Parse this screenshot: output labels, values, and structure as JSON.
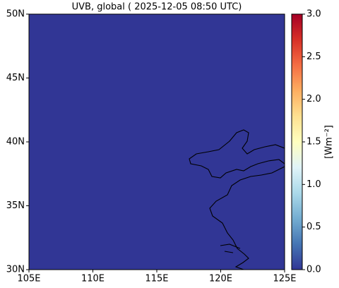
{
  "chart_data": {
    "type": "map",
    "title": "UVB, global ( 2025-12-05 08:50 UTC)",
    "xlim": [
      105,
      125
    ],
    "xticks": [
      {
        "value": 105,
        "label": "105E"
      },
      {
        "value": 110,
        "label": "110E"
      },
      {
        "value": 115,
        "label": "115E"
      },
      {
        "value": 120,
        "label": "120E"
      },
      {
        "value": 125,
        "label": "125E"
      }
    ],
    "ylim": [
      30,
      50
    ],
    "yticks": [
      {
        "value": 30,
        "label": "30N"
      },
      {
        "value": 35,
        "label": "35N"
      },
      {
        "value": 40,
        "label": "40N"
      },
      {
        "value": 45,
        "label": "45N"
      },
      {
        "value": 50,
        "label": "50N"
      }
    ],
    "field_value": 0,
    "colorbar": {
      "label": "[Wm⁻²]",
      "clim": [
        0,
        3
      ],
      "ticks": [
        {
          "value": 0,
          "label": "0.0"
        },
        {
          "value": 0.5,
          "label": "0.5"
        },
        {
          "value": 1,
          "label": "1.0"
        },
        {
          "value": 1.5,
          "label": "1.5"
        },
        {
          "value": 2,
          "label": "2.0"
        },
        {
          "value": 2.5,
          "label": "2.5"
        },
        {
          "value": 3,
          "label": "3.0"
        }
      ],
      "colormap": [
        "#313695",
        "#4575b4",
        "#74add1",
        "#abd9e9",
        "#e0f3f8",
        "#ffffbf",
        "#fee090",
        "#fdae61",
        "#f46d43",
        "#d73027",
        "#a50026"
      ]
    }
  }
}
